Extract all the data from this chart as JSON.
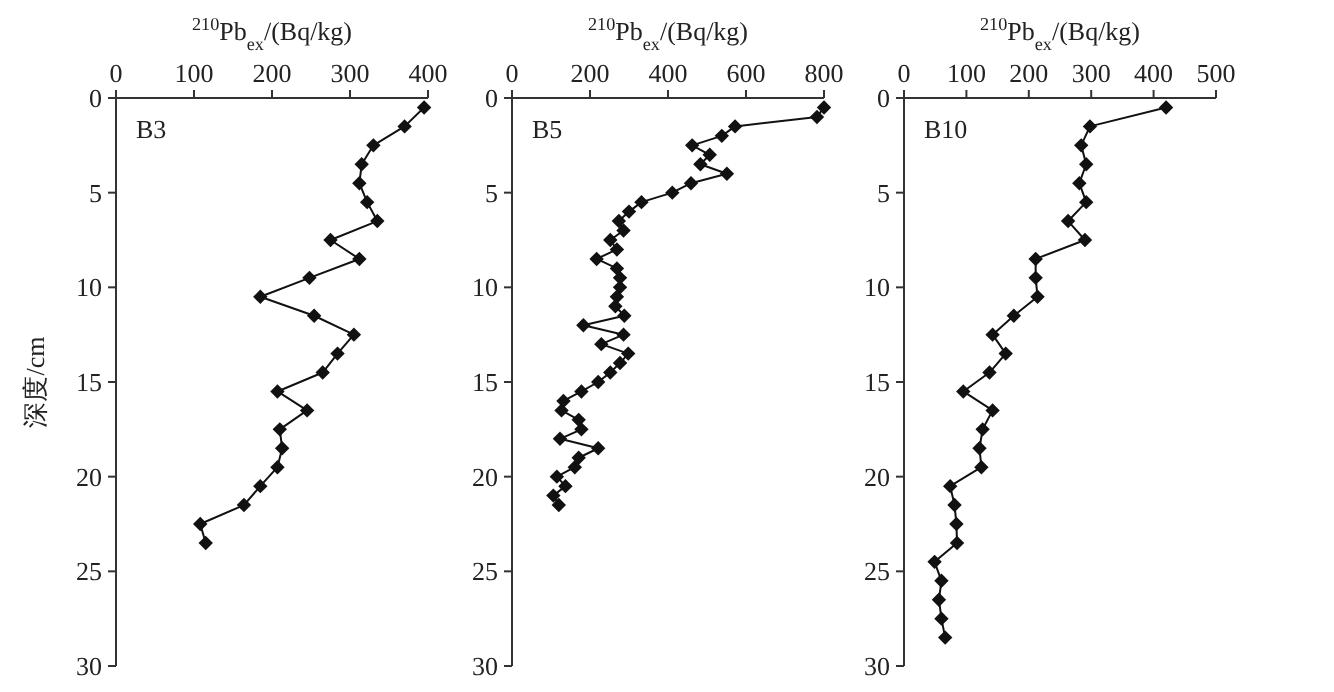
{
  "chart_data": [
    {
      "type": "line",
      "title": "B3",
      "xlabel": "$^{210}$Pb$_{ex}$/(Bq/kg)",
      "ylabel": "深度/cm",
      "xlim": [
        0,
        400
      ],
      "xticks": [
        0,
        100,
        200,
        300,
        400
      ],
      "ylim": [
        30,
        0
      ],
      "yticks": [
        0,
        5,
        10,
        15,
        20,
        25,
        30
      ],
      "marker": "diamond",
      "line_style": "solid",
      "grid": false,
      "series": [
        {
          "color": "#111111",
          "x": [
            395,
            370,
            330,
            315,
            312,
            322,
            335,
            275,
            312,
            248,
            185,
            254,
            305,
            284,
            265,
            207,
            245,
            210,
            213,
            207,
            185,
            164,
            108,
            115
          ],
          "values": [
            0.5,
            1.5,
            2.5,
            3.5,
            4.5,
            5.5,
            6.5,
            7.5,
            8.5,
            9.5,
            10.5,
            11.5,
            12.5,
            13.5,
            14.5,
            15.5,
            16.5,
            17.5,
            18.5,
            19.5,
            20.5,
            21.5,
            22.5,
            23.5
          ]
        }
      ]
    },
    {
      "type": "line",
      "title": "B5",
      "xlabel": "$^{210}$Pb$_{ex}$/(Bq/kg)",
      "xlim": [
        0,
        800
      ],
      "xticks": [
        0,
        200,
        400,
        600,
        800
      ],
      "ylim": [
        30,
        0
      ],
      "yticks": [
        0,
        5,
        10,
        15,
        20,
        25,
        30
      ],
      "marker": "diamond",
      "line_style": "solid",
      "grid": false,
      "series": [
        {
          "color": "#111111",
          "x": [
            800,
            782,
            572,
            538,
            462,
            507,
            483,
            551,
            459,
            411,
            332,
            300,
            274,
            286,
            252,
            269,
            217,
            269,
            277,
            277,
            269,
            265,
            288,
            183,
            286,
            229,
            298,
            277,
            252,
            221,
            178,
            132,
            127,
            171,
            178,
            123,
            221,
            171,
            161,
            115,
            137,
            106,
            120
          ],
          "values": [
            0.5,
            1.0,
            1.5,
            2.0,
            2.5,
            3.0,
            3.5,
            4.0,
            4.5,
            5.0,
            5.5,
            6.0,
            6.5,
            7.0,
            7.5,
            8.0,
            8.5,
            9.0,
            9.5,
            10.0,
            10.5,
            11.0,
            11.5,
            12.0,
            12.5,
            13.0,
            13.5,
            14.0,
            14.5,
            15.0,
            15.5,
            16.0,
            16.5,
            17.0,
            17.5,
            18.0,
            18.5,
            19.0,
            19.5,
            20.0,
            20.5,
            21.0,
            21.5
          ]
        }
      ]
    },
    {
      "type": "line",
      "title": "B10",
      "xlabel": "$^{210}$Pb$_{ex}$/(Bq/kg)",
      "xlim": [
        0,
        500
      ],
      "xticks": [
        0,
        100,
        200,
        300,
        400,
        500
      ],
      "ylim": [
        30,
        0
      ],
      "yticks": [
        0,
        5,
        10,
        15,
        20,
        25,
        30
      ],
      "marker": "diamond",
      "line_style": "solid",
      "grid": false,
      "series": [
        {
          "color": "#111111",
          "x": [
            420,
            298,
            284,
            292,
            281,
            292,
            263,
            290,
            211,
            211,
            214,
            176,
            142,
            163,
            137,
            95,
            142,
            126,
            121,
            124,
            74,
            81,
            84,
            85,
            49,
            60,
            56,
            60,
            66
          ],
          "values": [
            0.5,
            1.5,
            2.5,
            3.5,
            4.5,
            5.5,
            6.5,
            7.5,
            8.5,
            9.5,
            10.5,
            11.5,
            12.5,
            13.5,
            14.5,
            15.5,
            16.5,
            17.5,
            18.5,
            19.5,
            20.5,
            21.5,
            22.5,
            23.5,
            24.5,
            25.5,
            26.5,
            27.5,
            28.5
          ]
        }
      ]
    }
  ]
}
